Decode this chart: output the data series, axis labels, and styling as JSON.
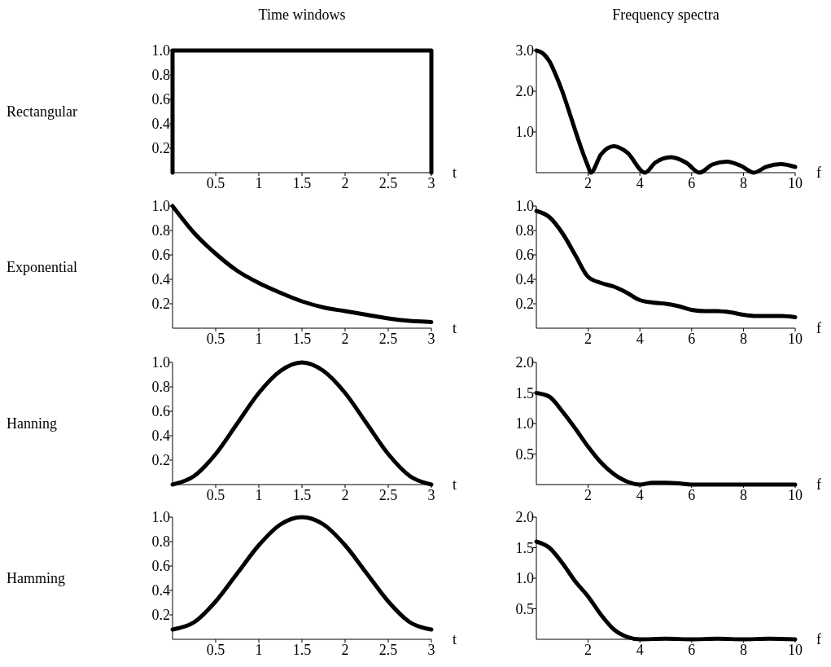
{
  "chart_data": [
    {
      "type": "line",
      "title": "Time windows",
      "ylabel": "Rectangular",
      "xlabel": "t",
      "color": "#000000",
      "x": [
        0,
        0,
        3,
        3
      ],
      "values": [
        0,
        1,
        1,
        0
      ],
      "xlim": [
        0,
        3
      ],
      "ylim": [
        0,
        1
      ],
      "xticks": [
        0.5,
        1,
        1.5,
        2,
        2.5,
        3
      ],
      "yticks": [
        0.2,
        0.4,
        0.6,
        0.8,
        {
          "value": 1,
          "label": "1.0"
        }
      ]
    },
    {
      "type": "line",
      "title": "Frequency spectra",
      "xlabel": "f",
      "color": "#000000",
      "x": [
        0,
        0.25,
        0.5,
        0.75,
        1,
        1.25,
        1.5,
        1.75,
        2,
        2.1,
        2.5,
        3,
        3.5,
        4.2,
        4.6,
        5.2,
        5.8,
        6.3,
        6.8,
        7.35,
        7.9,
        8.4,
        8.9,
        9.45,
        10
      ],
      "values": [
        3,
        2.93,
        2.74,
        2.4,
        2,
        1.53,
        1.04,
        0.57,
        0.15,
        0,
        0.45,
        0.65,
        0.5,
        0,
        0.25,
        0.38,
        0.24,
        0,
        0.2,
        0.27,
        0.17,
        0,
        0.15,
        0.21,
        0.14
      ],
      "xlim": [
        0,
        10
      ],
      "ylim": [
        0,
        3
      ],
      "xticks": [
        2,
        4,
        6,
        8,
        10
      ],
      "yticks": [
        {
          "value": 1,
          "label": "1.0"
        },
        {
          "value": 2,
          "label": "2.0"
        },
        {
          "value": 3,
          "label": "3.0"
        }
      ]
    },
    {
      "type": "line",
      "ylabel": "Exponential",
      "xlabel": "t",
      "color": "#000000",
      "x": [
        0,
        0.25,
        0.5,
        0.75,
        1,
        1.25,
        1.5,
        1.75,
        2,
        2.25,
        2.5,
        2.75,
        3
      ],
      "values": [
        1,
        0.78,
        0.61,
        0.47,
        0.37,
        0.29,
        0.22,
        0.17,
        0.14,
        0.11,
        0.08,
        0.06,
        0.05
      ],
      "xlim": [
        0,
        3
      ],
      "ylim": [
        0,
        1
      ],
      "xticks": [
        0.5,
        1,
        1.5,
        2,
        2.5,
        3
      ],
      "yticks": [
        0.2,
        0.4,
        0.6,
        0.8,
        {
          "value": 1,
          "label": "1.0"
        }
      ]
    },
    {
      "type": "line",
      "xlabel": "f",
      "color": "#000000",
      "x": [
        0,
        0.5,
        1,
        1.5,
        2,
        2.5,
        3,
        3.5,
        4,
        4.5,
        5,
        5.5,
        6,
        6.5,
        7,
        7.5,
        8,
        8.5,
        9,
        9.5,
        10
      ],
      "values": [
        0.96,
        0.91,
        0.78,
        0.6,
        0.42,
        0.37,
        0.34,
        0.29,
        0.23,
        0.21,
        0.2,
        0.18,
        0.15,
        0.14,
        0.14,
        0.13,
        0.11,
        0.1,
        0.1,
        0.1,
        0.09
      ],
      "xlim": [
        0,
        10
      ],
      "ylim": [
        0,
        1
      ],
      "xticks": [
        2,
        4,
        6,
        8,
        10
      ],
      "yticks": [
        0.2,
        0.4,
        0.6,
        0.8,
        {
          "value": 1,
          "label": "1.0"
        }
      ]
    },
    {
      "type": "line",
      "ylabel": "Hanning",
      "xlabel": "t",
      "color": "#000000",
      "x": [
        0,
        0.25,
        0.5,
        0.75,
        1,
        1.25,
        1.5,
        1.75,
        2,
        2.25,
        2.5,
        2.75,
        3
      ],
      "values": [
        0,
        0.07,
        0.25,
        0.5,
        0.75,
        0.93,
        1,
        0.93,
        0.75,
        0.5,
        0.25,
        0.07,
        0
      ],
      "xlim": [
        0,
        3
      ],
      "ylim": [
        0,
        1
      ],
      "xticks": [
        0.5,
        1,
        1.5,
        2,
        2.5,
        3
      ],
      "yticks": [
        0.2,
        0.4,
        0.6,
        0.8,
        {
          "value": 1,
          "label": "1.0"
        }
      ]
    },
    {
      "type": "line",
      "xlabel": "f",
      "color": "#000000",
      "x": [
        0,
        0.5,
        1,
        1.5,
        2,
        2.5,
        3,
        3.5,
        4,
        4.5,
        5,
        5.5,
        6,
        7,
        8,
        9,
        10
      ],
      "values": [
        1.5,
        1.44,
        1.2,
        0.92,
        0.62,
        0.36,
        0.17,
        0.05,
        0,
        0.03,
        0.03,
        0.02,
        0,
        0,
        0,
        0,
        0
      ],
      "xlim": [
        0,
        10
      ],
      "ylim": [
        0,
        2
      ],
      "xticks": [
        2,
        4,
        6,
        8,
        10
      ],
      "yticks": [
        0.5,
        {
          "value": 1,
          "label": "1.0"
        },
        1.5,
        {
          "value": 2,
          "label": "2.0"
        }
      ]
    },
    {
      "type": "line",
      "ylabel": "Hamming",
      "xlabel": "t",
      "color": "#000000",
      "x": [
        0,
        0.25,
        0.5,
        0.75,
        1,
        1.25,
        1.5,
        1.75,
        2,
        2.25,
        2.5,
        2.75,
        3
      ],
      "values": [
        0.08,
        0.14,
        0.31,
        0.54,
        0.77,
        0.94,
        1,
        0.94,
        0.77,
        0.54,
        0.31,
        0.14,
        0.08
      ],
      "xlim": [
        0,
        3
      ],
      "ylim": [
        0,
        1
      ],
      "xticks": [
        0.5,
        1,
        1.5,
        2,
        2.5,
        3
      ],
      "yticks": [
        0.2,
        0.4,
        0.6,
        0.8,
        {
          "value": 1,
          "label": "1.0"
        }
      ]
    },
    {
      "type": "line",
      "xlabel": "f",
      "color": "#000000",
      "x": [
        0,
        0.5,
        1,
        1.5,
        2,
        2.5,
        3,
        3.5,
        4,
        5,
        6,
        7,
        8,
        9,
        10
      ],
      "values": [
        1.6,
        1.5,
        1.25,
        0.95,
        0.7,
        0.4,
        0.16,
        0.04,
        0,
        0.01,
        0,
        0.01,
        0,
        0.01,
        0
      ],
      "xlim": [
        0,
        10
      ],
      "ylim": [
        0,
        2
      ],
      "xticks": [
        2,
        4,
        6,
        8,
        10
      ],
      "yticks": [
        0.5,
        {
          "value": 1,
          "label": "1.0"
        },
        1.5,
        {
          "value": 2,
          "label": "2.0"
        }
      ]
    }
  ]
}
